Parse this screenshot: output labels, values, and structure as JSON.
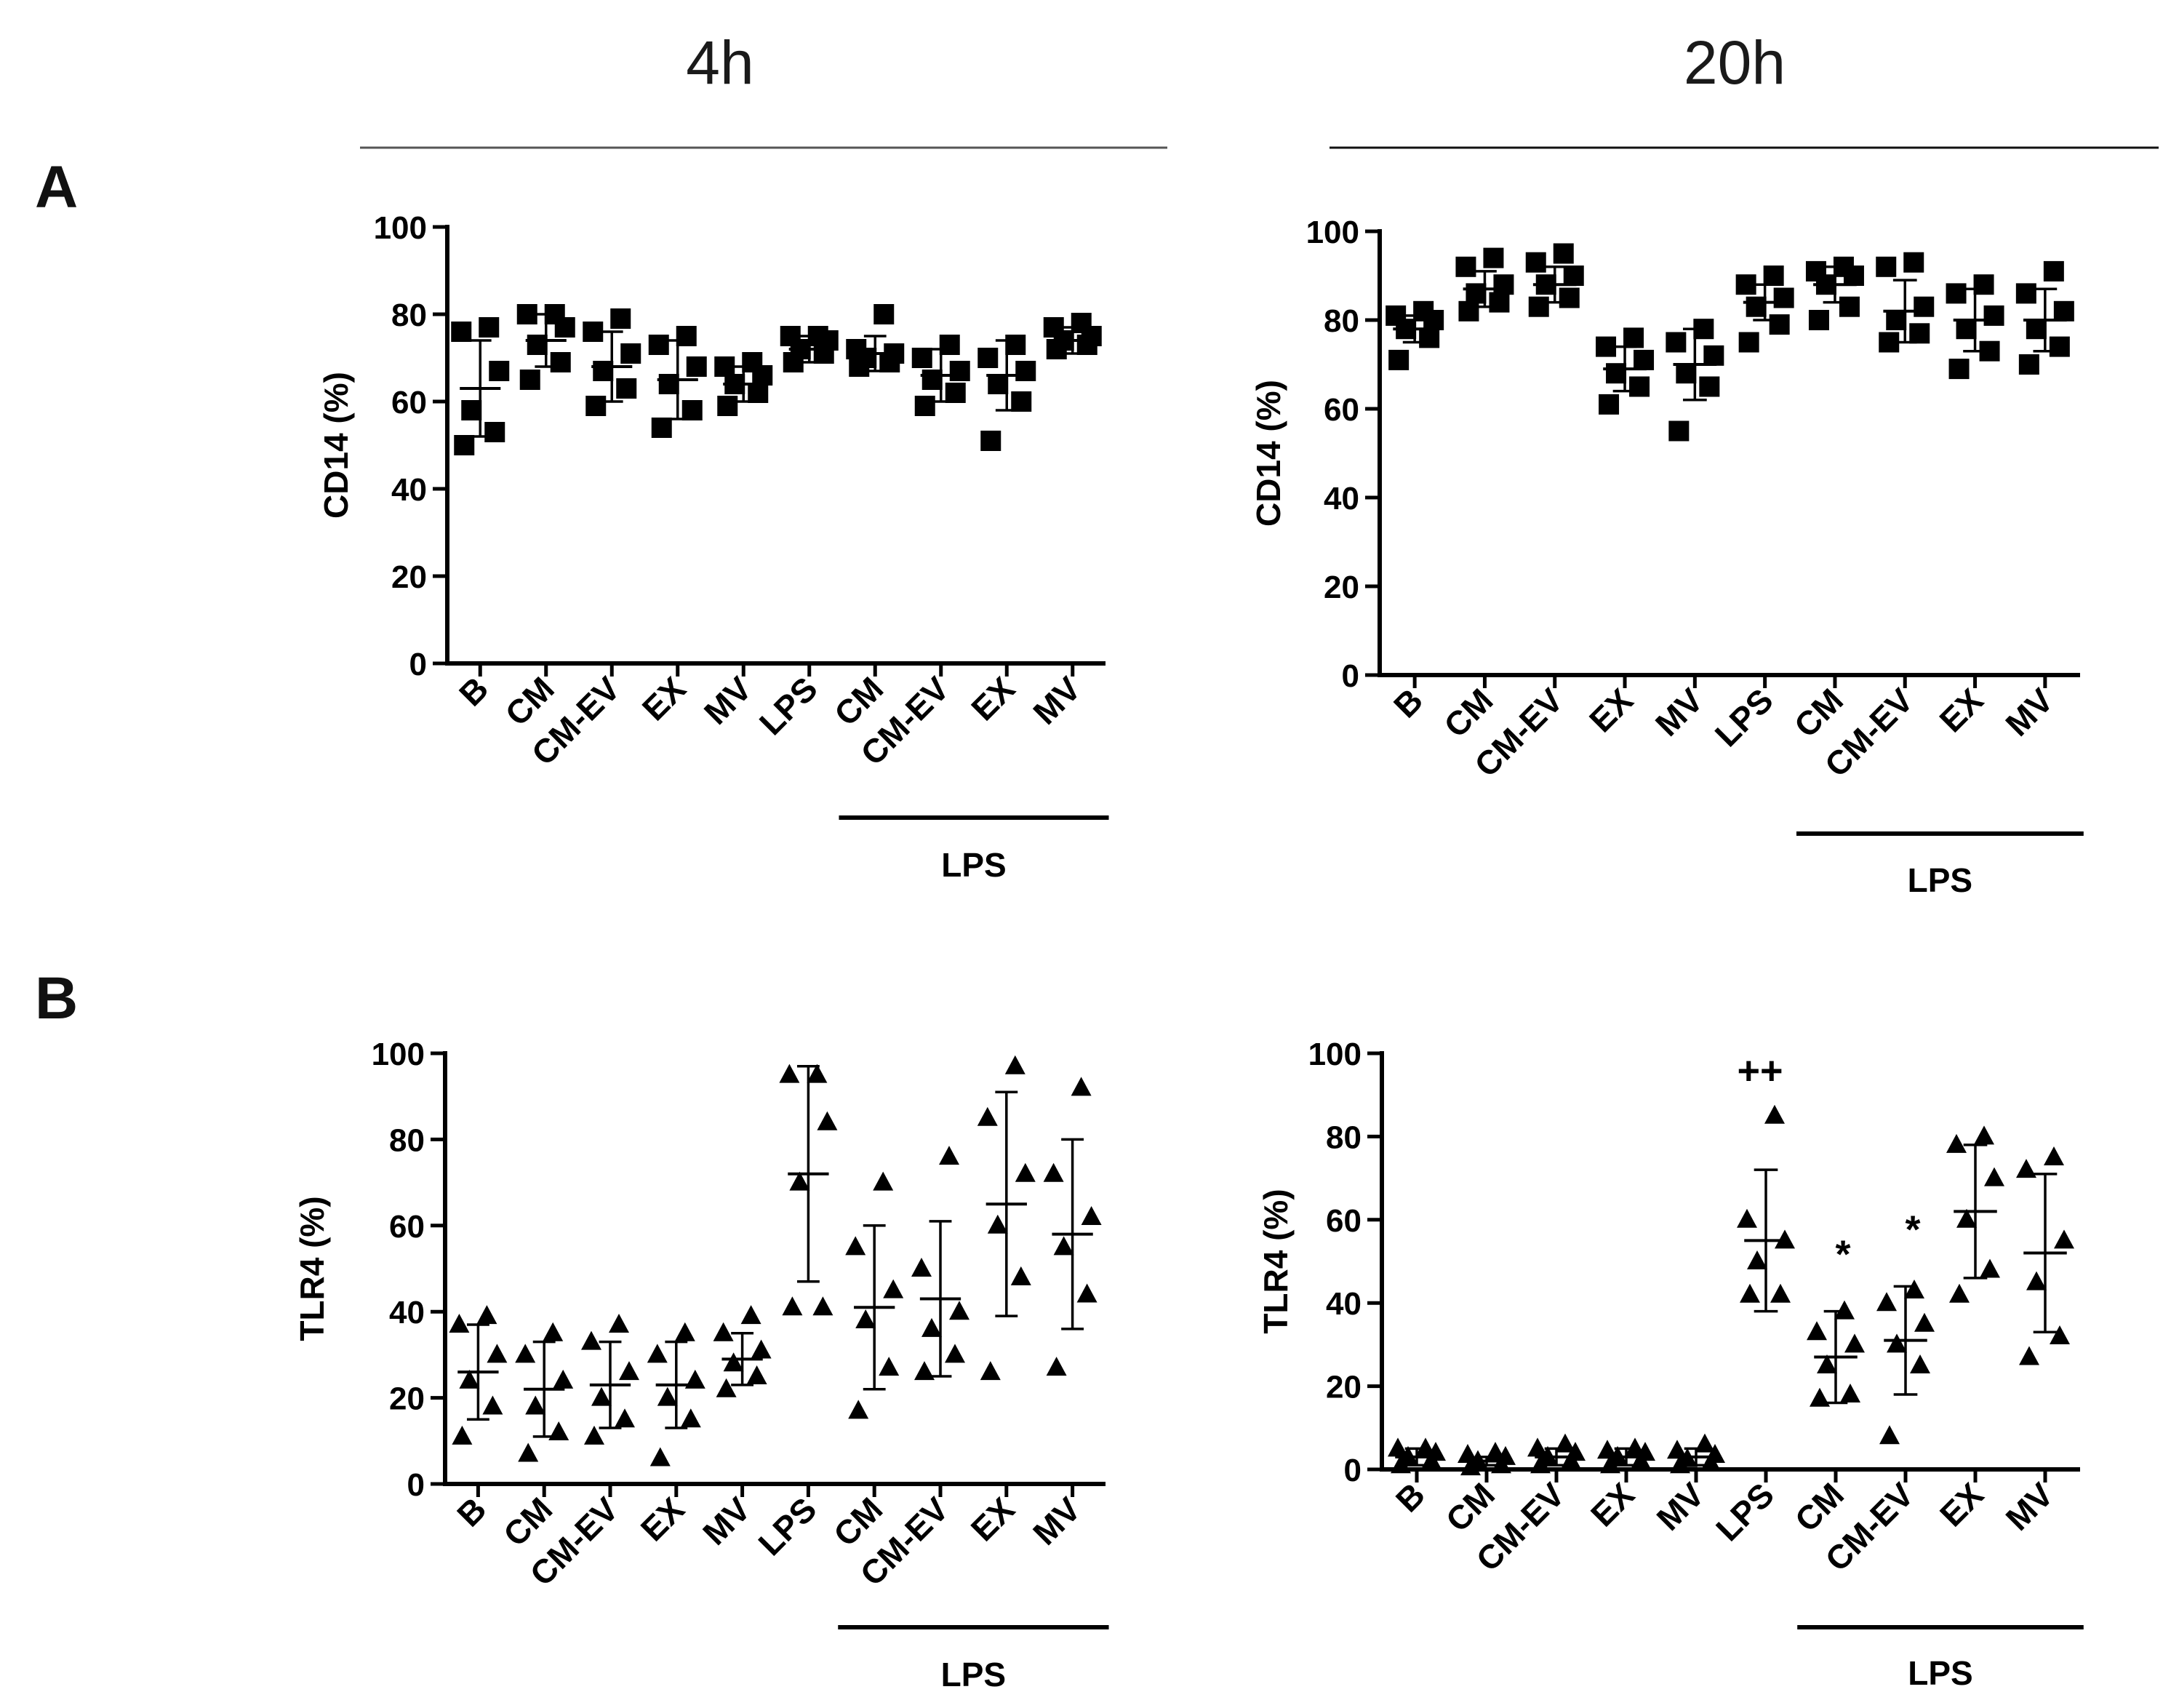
{
  "titles": {
    "col1": "4h",
    "col2": "20h"
  },
  "panels": {
    "a": "A",
    "b": "B"
  },
  "chart_data": [
    {
      "id": "A-4h",
      "type": "scatter",
      "ylabel": "CD14 (%)",
      "ylim": [
        0,
        100
      ],
      "yticks": [
        "0",
        "20",
        "40",
        "60",
        "80",
        "100"
      ],
      "marker": "square",
      "categories": [
        "B",
        "CM",
        "CM-EV",
        "EX",
        "MV",
        "LPS",
        "CM",
        "CM-EV",
        "EX",
        "MV"
      ],
      "group_label": "LPS",
      "group_span": [
        6,
        9
      ],
      "points": [
        [
          50,
          53,
          58,
          67,
          76,
          77
        ],
        [
          65,
          69,
          73,
          77,
          80,
          80
        ],
        [
          59,
          63,
          67,
          71,
          76,
          79
        ],
        [
          54,
          58,
          64,
          68,
          73,
          75
        ],
        [
          59,
          62,
          64,
          66,
          68,
          69
        ],
        [
          69,
          71,
          72,
          74,
          75,
          75
        ],
        [
          68,
          69,
          70,
          71,
          72,
          80
        ],
        [
          59,
          62,
          65,
          67,
          70,
          73
        ],
        [
          51,
          60,
          64,
          67,
          70,
          73
        ],
        [
          72,
          73,
          74,
          75,
          77,
          78
        ]
      ],
      "mean": [
        63,
        74,
        68,
        65,
        64,
        72,
        71,
        66,
        66,
        74
      ],
      "sd": [
        11,
        6,
        8,
        9,
        4,
        3,
        4,
        6,
        8,
        3
      ],
      "annotations": []
    },
    {
      "id": "A-20h",
      "type": "scatter",
      "ylabel": "CD14 (%)",
      "ylim": [
        0,
        100
      ],
      "yticks": [
        "0",
        "20",
        "40",
        "60",
        "80",
        "100"
      ],
      "marker": "square",
      "categories": [
        "B",
        "CM",
        "CM-EV",
        "EX",
        "MV",
        "LPS",
        "CM",
        "CM-EV",
        "EX",
        "MV"
      ],
      "group_label": "LPS",
      "group_span": [
        6,
        9
      ],
      "points": [
        [
          71,
          76,
          78,
          80,
          81,
          82
        ],
        [
          82,
          84,
          86,
          88,
          92,
          94
        ],
        [
          83,
          85,
          88,
          90,
          93,
          95
        ],
        [
          61,
          65,
          68,
          71,
          74,
          76
        ],
        [
          55,
          65,
          68,
          72,
          75,
          78
        ],
        [
          75,
          79,
          83,
          85,
          88,
          90
        ],
        [
          80,
          83,
          88,
          90,
          91,
          92
        ],
        [
          75,
          77,
          80,
          83,
          92,
          93
        ],
        [
          69,
          73,
          78,
          81,
          86,
          88
        ],
        [
          70,
          74,
          78,
          82,
          86,
          91
        ]
      ],
      "mean": [
        78,
        87,
        88,
        69,
        70,
        84,
        88,
        82,
        80,
        80
      ],
      "sd": [
        3,
        4,
        4,
        5,
        8,
        4,
        4,
        7,
        7,
        7
      ],
      "annotations": []
    },
    {
      "id": "B-4h",
      "type": "scatter",
      "ylabel": "TLR4 (%)",
      "ylim": [
        0,
        100
      ],
      "yticks": [
        "0",
        "20",
        "40",
        "60",
        "80",
        "100"
      ],
      "marker": "triangle",
      "categories": [
        "B",
        "CM",
        "CM-EV",
        "EX",
        "MV",
        "LPS",
        "CM",
        "CM-EV",
        "EX",
        "MV"
      ],
      "group_label": "LPS",
      "group_span": [
        6,
        9
      ],
      "points": [
        [
          11,
          18,
          24,
          30,
          37,
          39
        ],
        [
          7,
          12,
          18,
          24,
          30,
          35
        ],
        [
          11,
          15,
          20,
          26,
          33,
          37
        ],
        [
          6,
          15,
          20,
          24,
          30,
          35
        ],
        [
          22,
          25,
          28,
          31,
          35,
          39
        ],
        [
          41,
          41,
          70,
          84,
          95,
          95
        ],
        [
          17,
          27,
          38,
          45,
          55,
          70
        ],
        [
          26,
          30,
          36,
          40,
          50,
          76
        ],
        [
          26,
          48,
          60,
          72,
          85,
          97
        ],
        [
          27,
          44,
          55,
          62,
          72,
          92
        ]
      ],
      "mean": [
        26,
        22,
        23,
        23,
        29,
        72,
        41,
        43,
        65,
        58
      ],
      "sd": [
        11,
        11,
        10,
        10,
        6,
        25,
        19,
        18,
        26,
        22
      ],
      "annotations": []
    },
    {
      "id": "B-20h",
      "type": "scatter",
      "ylabel": "TLR4 (%)",
      "ylim": [
        0,
        100
      ],
      "yticks": [
        "0",
        "20",
        "40",
        "60",
        "80",
        "100"
      ],
      "marker": "triangle",
      "categories": [
        "B",
        "CM",
        "CM-EV",
        "EX",
        "MV",
        "LPS",
        "CM",
        "CM-EV",
        "EX",
        "MV"
      ],
      "group_label": "LPS",
      "group_span": [
        6,
        9
      ],
      "points": [
        [
          1,
          2,
          3,
          4,
          5,
          5
        ],
        [
          0.5,
          1,
          2,
          3,
          3.5,
          4
        ],
        [
          1,
          2,
          3,
          4,
          5,
          6
        ],
        [
          1,
          2,
          3,
          4,
          4.5,
          5
        ],
        [
          1,
          1.5,
          2.5,
          3.5,
          4.5,
          6
        ],
        [
          42,
          42,
          50,
          55,
          60,
          85
        ],
        [
          17,
          18,
          25,
          30,
          33,
          38
        ],
        [
          8,
          25,
          30,
          35,
          40,
          43
        ],
        [
          42,
          48,
          60,
          70,
          78,
          80
        ],
        [
          27,
          32,
          45,
          55,
          72,
          75
        ]
      ],
      "mean": [
        3,
        2,
        3,
        3,
        3,
        55,
        27,
        31,
        62,
        52
      ],
      "sd": [
        2,
        1,
        2,
        2,
        2,
        17,
        11,
        13,
        16,
        19
      ],
      "annotations": [
        {
          "index": 5,
          "text": "++"
        },
        {
          "index": 6,
          "text": "*"
        },
        {
          "index": 7,
          "text": "*"
        }
      ]
    }
  ]
}
